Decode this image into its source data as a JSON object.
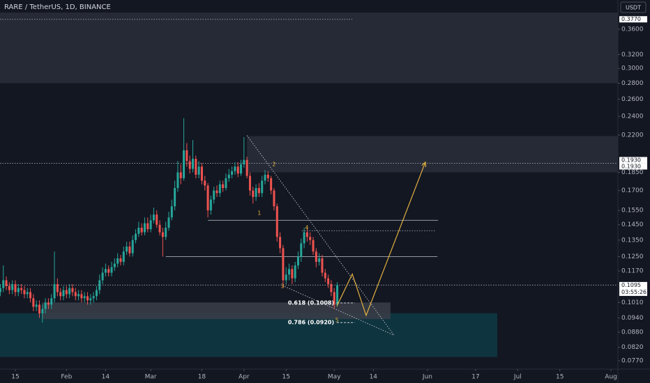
{
  "chart_data": {
    "type": "candlestick",
    "title": "RARE / TetherUS, 1D, BINANCE",
    "currency": "USDT",
    "log_scale": true,
    "up_color": "#26a69a",
    "down_color": "#ef5350",
    "xlim": [
      9.9,
      215.3
    ],
    "ylim": [
      0.0741,
      0.4124
    ],
    "xticks": [
      15,
      {
        "value": 32,
        "label": "Feb"
      },
      {
        "value": 45,
        "label": "14"
      },
      {
        "value": 60,
        "label": "Mar"
      },
      {
        "value": 77,
        "label": "18"
      },
      {
        "value": 91,
        "label": "Apr"
      },
      {
        "value": 105,
        "label": "15"
      },
      {
        "value": 121,
        "label": "May"
      },
      {
        "value": 134,
        "label": "14"
      },
      {
        "value": 152,
        "label": "Jun"
      },
      {
        "value": 168,
        "label": "17"
      },
      {
        "value": 182,
        "label": "Jul"
      },
      {
        "value": 196,
        "label": "15"
      },
      {
        "value": 213,
        "label": "Aug"
      }
    ],
    "yticks": [
      {
        "value": 0.36,
        "label": "0.3600"
      },
      {
        "value": 0.32,
        "label": "0.3200"
      },
      {
        "value": 0.3,
        "label": "0.3000"
      },
      {
        "value": 0.28,
        "label": "0.2800"
      },
      {
        "value": 0.26,
        "label": "0.2600"
      },
      {
        "value": 0.24,
        "label": "0.2400"
      },
      {
        "value": 0.22,
        "label": "0.2200"
      },
      {
        "value": 0.185,
        "label": "0.1850"
      },
      {
        "value": 0.17,
        "label": "0.1700"
      },
      {
        "value": 0.155,
        "label": "0.1550"
      },
      {
        "value": 0.145,
        "label": "0.1450"
      },
      {
        "value": 0.135,
        "label": "0.1350"
      },
      {
        "value": 0.125,
        "label": "0.1250"
      },
      {
        "value": 0.117,
        "label": "0.1170"
      },
      {
        "value": 0.101,
        "label": "0.1010"
      },
      {
        "value": 0.094,
        "label": "0.0940"
      },
      {
        "value": 0.088,
        "label": "0.0880"
      },
      {
        "value": 0.082,
        "label": "0.0820"
      },
      {
        "value": 0.077,
        "label": "0.0770"
      }
    ],
    "price_labels": [
      {
        "value": 0.377,
        "label": "0.3770"
      },
      {
        "value": 0.193,
        "label": "0.1930"
      },
      {
        "value": 0.193,
        "label": "0.1930"
      },
      {
        "value": 0.1095,
        "label": "0.1095",
        "countdown": "03:55:26"
      }
    ],
    "x": [
      10,
      11,
      12,
      13,
      14,
      15,
      16,
      17,
      18,
      19,
      20,
      21,
      22,
      23,
      24,
      25,
      26,
      27,
      28,
      29,
      30,
      31,
      32,
      33,
      34,
      35,
      36,
      37,
      38,
      39,
      40,
      41,
      42,
      43,
      44,
      45,
      46,
      47,
      48,
      49,
      50,
      51,
      52,
      53,
      54,
      55,
      56,
      57,
      58,
      59,
      60,
      61,
      62,
      63,
      64,
      65,
      66,
      67,
      68,
      69,
      70,
      71,
      72,
      73,
      74,
      75,
      76,
      77,
      78,
      79,
      80,
      81,
      82,
      83,
      84,
      85,
      86,
      87,
      88,
      89,
      90,
      91,
      92,
      93,
      94,
      95,
      96,
      97,
      98,
      99,
      100,
      101,
      102,
      103,
      104,
      105,
      106,
      107,
      108,
      109,
      110,
      111,
      112,
      113,
      114,
      115,
      116,
      117,
      118,
      119,
      120,
      121,
      122
    ],
    "open": [
      0.106,
      0.108,
      0.112,
      0.109,
      0.107,
      0.11,
      0.106,
      0.108,
      0.107,
      0.105,
      0.106,
      0.103,
      0.099,
      0.1,
      0.096,
      0.098,
      0.101,
      0.1,
      0.103,
      0.11,
      0.106,
      0.104,
      0.107,
      0.105,
      0.108,
      0.106,
      0.104,
      0.105,
      0.103,
      0.104,
      0.102,
      0.103,
      0.104,
      0.107,
      0.112,
      0.116,
      0.118,
      0.116,
      0.119,
      0.121,
      0.124,
      0.122,
      0.128,
      0.131,
      0.127,
      0.135,
      0.139,
      0.143,
      0.14,
      0.146,
      0.142,
      0.148,
      0.152,
      0.145,
      0.14,
      0.137,
      0.143,
      0.15,
      0.158,
      0.172,
      0.185,
      0.18,
      0.205,
      0.195,
      0.188,
      0.197,
      0.183,
      0.19,
      0.178,
      0.174,
      0.155,
      0.163,
      0.17,
      0.168,
      0.175,
      0.172,
      0.18,
      0.183,
      0.186,
      0.19,
      0.184,
      0.192,
      0.196,
      0.182,
      0.17,
      0.165,
      0.172,
      0.168,
      0.178,
      0.183,
      0.18,
      0.17,
      0.158,
      0.137,
      0.13,
      0.112,
      0.115,
      0.118,
      0.113,
      0.12,
      0.125,
      0.133,
      0.14,
      0.137,
      0.135,
      0.128,
      0.122,
      0.124,
      0.116,
      0.113,
      0.11,
      0.106,
      0.1
    ],
    "high": [
      0.11,
      0.12,
      0.114,
      0.111,
      0.112,
      0.112,
      0.11,
      0.11,
      0.109,
      0.108,
      0.108,
      0.105,
      0.102,
      0.102,
      0.1,
      0.103,
      0.103,
      0.105,
      0.128,
      0.113,
      0.108,
      0.109,
      0.109,
      0.11,
      0.11,
      0.108,
      0.107,
      0.107,
      0.106,
      0.106,
      0.105,
      0.106,
      0.109,
      0.115,
      0.119,
      0.121,
      0.12,
      0.122,
      0.124,
      0.127,
      0.126,
      0.131,
      0.134,
      0.134,
      0.138,
      0.142,
      0.147,
      0.146,
      0.15,
      0.15,
      0.152,
      0.157,
      0.155,
      0.148,
      0.143,
      0.147,
      0.154,
      0.163,
      0.178,
      0.195,
      0.192,
      0.238,
      0.212,
      0.2,
      0.215,
      0.2,
      0.195,
      0.193,
      0.182,
      0.176,
      0.166,
      0.173,
      0.174,
      0.178,
      0.178,
      0.184,
      0.188,
      0.19,
      0.194,
      0.194,
      0.196,
      0.218,
      0.199,
      0.185,
      0.173,
      0.175,
      0.176,
      0.182,
      0.187,
      0.186,
      0.182,
      0.172,
      0.16,
      0.14,
      0.132,
      0.119,
      0.121,
      0.12,
      0.122,
      0.128,
      0.136,
      0.143,
      0.143,
      0.14,
      0.137,
      0.13,
      0.127,
      0.126,
      0.118,
      0.115,
      0.112,
      0.108,
      0.111
    ],
    "low": [
      0.104,
      0.106,
      0.107,
      0.105,
      0.105,
      0.104,
      0.104,
      0.105,
      0.103,
      0.103,
      0.101,
      0.097,
      0.097,
      0.094,
      0.092,
      0.096,
      0.098,
      0.098,
      0.101,
      0.104,
      0.102,
      0.102,
      0.103,
      0.103,
      0.104,
      0.102,
      0.102,
      0.101,
      0.101,
      0.1,
      0.1,
      0.101,
      0.102,
      0.105,
      0.11,
      0.114,
      0.114,
      0.114,
      0.117,
      0.119,
      0.12,
      0.12,
      0.126,
      0.125,
      0.125,
      0.133,
      0.137,
      0.138,
      0.138,
      0.14,
      0.14,
      0.146,
      0.143,
      0.138,
      0.125,
      0.135,
      0.141,
      0.148,
      0.155,
      0.169,
      0.175,
      0.178,
      0.19,
      0.184,
      0.185,
      0.18,
      0.18,
      0.175,
      0.17,
      0.15,
      0.152,
      0.16,
      0.165,
      0.165,
      0.169,
      0.17,
      0.177,
      0.18,
      0.183,
      0.181,
      0.182,
      0.189,
      0.18,
      0.166,
      0.16,
      0.162,
      0.165,
      0.165,
      0.175,
      0.177,
      0.167,
      0.155,
      0.134,
      0.127,
      0.108,
      0.11,
      0.112,
      0.11,
      0.111,
      0.118,
      0.122,
      0.13,
      0.134,
      0.132,
      0.126,
      0.119,
      0.12,
      0.114,
      0.111,
      0.108,
      0.104,
      0.098,
      0.099
    ],
    "close": [
      0.108,
      0.112,
      0.109,
      0.107,
      0.11,
      0.106,
      0.108,
      0.107,
      0.105,
      0.106,
      0.103,
      0.099,
      0.1,
      0.096,
      0.098,
      0.101,
      0.1,
      0.103,
      0.11,
      0.106,
      0.104,
      0.107,
      0.105,
      0.108,
      0.106,
      0.104,
      0.105,
      0.103,
      0.104,
      0.102,
      0.103,
      0.104,
      0.107,
      0.112,
      0.116,
      0.118,
      0.116,
      0.119,
      0.121,
      0.124,
      0.122,
      0.128,
      0.131,
      0.127,
      0.135,
      0.139,
      0.143,
      0.14,
      0.146,
      0.142,
      0.148,
      0.152,
      0.145,
      0.14,
      0.137,
      0.143,
      0.15,
      0.158,
      0.172,
      0.185,
      0.18,
      0.205,
      0.195,
      0.188,
      0.197,
      0.183,
      0.19,
      0.178,
      0.174,
      0.155,
      0.163,
      0.17,
      0.168,
      0.175,
      0.172,
      0.18,
      0.183,
      0.186,
      0.19,
      0.184,
      0.192,
      0.196,
      0.182,
      0.17,
      0.165,
      0.172,
      0.168,
      0.178,
      0.183,
      0.18,
      0.17,
      0.158,
      0.137,
      0.13,
      0.112,
      0.115,
      0.118,
      0.113,
      0.12,
      0.125,
      0.133,
      0.14,
      0.137,
      0.135,
      0.128,
      0.122,
      0.124,
      0.116,
      0.113,
      0.11,
      0.106,
      0.1,
      0.1095
    ],
    "zones": [
      {
        "price": [
          0.28,
          0.389
        ],
        "color": "#2a2e39"
      },
      {
        "x": [
          92,
          215.3
        ],
        "price": [
          0.185,
          0.219
        ],
        "color": "#2a2e39"
      },
      {
        "x": [
          9.9,
          175.2
        ],
        "price": [
          0.0784,
          0.0961
        ],
        "color": "#0e3a44"
      },
      {
        "x": [
          23.8,
          139.7
        ],
        "price": [
          0.0935,
          0.101
        ],
        "color": "#3a3e48"
      }
    ],
    "levels": [
      {
        "x": [
          9.9,
          127
        ],
        "price": 0.377,
        "dash": true
      },
      {
        "price": 0.193,
        "dash": true
      },
      {
        "x": [
          79,
          155.5
        ],
        "price": 0.148,
        "dash": false
      },
      {
        "x": [
          110.3,
          154.8
        ],
        "price": 0.141,
        "dash": true
      },
      {
        "x": [
          65,
          155.3
        ],
        "price": 0.125,
        "dash": false
      },
      {
        "price": 0.1095,
        "dash": true
      }
    ],
    "trendlines": [
      {
        "x": [
          92,
          140.9
        ],
        "price": [
          0.2196,
          0.0867
        ]
      },
      {
        "x": [
          103.8,
          140.9
        ],
        "price": [
          0.1093,
          0.0867
        ]
      }
    ],
    "fib_levels": [
      {
        "x": [
          121.9,
          127.8
        ],
        "price": 0.1008,
        "label": "0.618 (0.1008)"
      },
      {
        "x": [
          121.9,
          127.8
        ],
        "price": 0.092,
        "label": "0.786 (0.0920)"
      }
    ],
    "projection": {
      "x": [
        121.9,
        127,
        131.6,
        151.3
      ],
      "price": [
        0.0994,
        0.1153,
        0.0951,
        0.194
      ],
      "color": "#e0b040"
    },
    "waves": [
      {
        "label": "1",
        "x": 96.1,
        "price": 0.153
      },
      {
        "label": "2",
        "x": 101,
        "price": 0.192
      },
      {
        "label": "3",
        "x": 103.8,
        "price": 0.109
      },
      {
        "label": "4",
        "x": 111.9,
        "price": 0.143
      },
      {
        "label": "5",
        "x": 121.9,
        "price": 0.093
      }
    ]
  }
}
